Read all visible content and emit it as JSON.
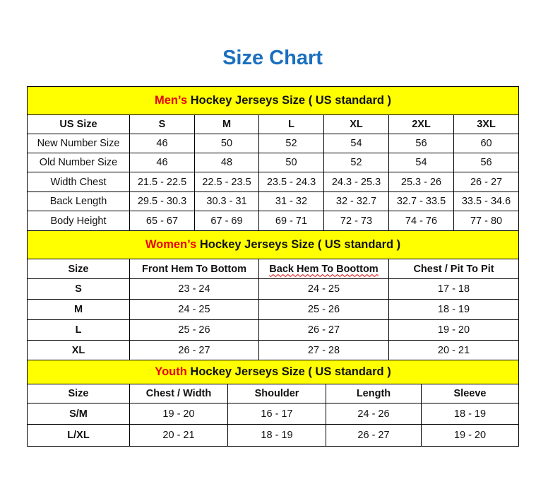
{
  "title": "Size Chart",
  "men": {
    "title_highlight": "Men’s",
    "title_rest": " Hockey Jerseys Size ( US standard )",
    "headers": [
      "US Size",
      "S",
      "M",
      "L",
      "XL",
      "2XL",
      "3XL"
    ],
    "rows": [
      [
        "New Number Size",
        "46",
        "50",
        "52",
        "54",
        "56",
        "60"
      ],
      [
        "Old Number Size",
        "46",
        "48",
        "50",
        "52",
        "54",
        "56"
      ],
      [
        "Width Chest",
        "21.5 - 22.5",
        "22.5 - 23.5",
        "23.5 - 24.3",
        "24.3 - 25.3",
        "25.3 - 26",
        "26 - 27"
      ],
      [
        "Back Length",
        "29.5 - 30.3",
        "30.3 - 31",
        "31 - 32",
        "32 - 32.7",
        "32.7 - 33.5",
        "33.5 - 34.6"
      ],
      [
        "Body Height",
        "65 - 67",
        "67 - 69",
        "69 - 71",
        "72 - 73",
        "74 - 76",
        "77 - 80"
      ]
    ]
  },
  "women": {
    "title_highlight": "Women’s",
    "title_rest": " Hockey Jerseys Size ( US standard )",
    "headers": [
      "Size",
      "Front Hem To Bottom",
      "Back Hem To Boottom",
      "Chest / Pit To Pit"
    ],
    "rows": [
      [
        "S",
        "23 - 24",
        "24 - 25",
        "17 - 18"
      ],
      [
        "M",
        "24 - 25",
        "25 - 26",
        "18 - 19"
      ],
      [
        "L",
        "25 - 26",
        "26 - 27",
        "19 - 20"
      ],
      [
        "XL",
        "26 - 27",
        "27 - 28",
        "20 - 21"
      ]
    ]
  },
  "youth": {
    "title_highlight": "Youth",
    "title_rest": " Hockey Jerseys Size ( US standard )",
    "headers": [
      "Size",
      "Chest / Width",
      "Shoulder",
      "Length",
      "Sleeve"
    ],
    "rows": [
      [
        "S/M",
        "19 - 20",
        "16 - 17",
        "24 - 26",
        "18 - 19"
      ],
      [
        "L/XL",
        "20 - 21",
        "18 - 19",
        "26 - 27",
        "19 - 20"
      ]
    ]
  }
}
